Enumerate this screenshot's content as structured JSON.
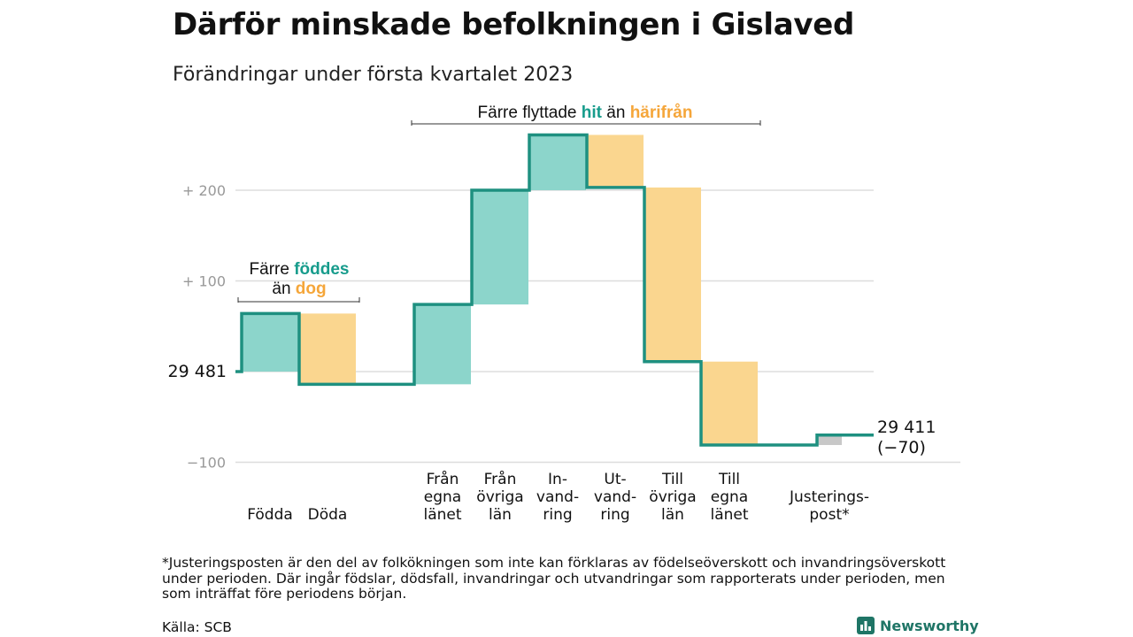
{
  "title": "Därför minskade befolkningen i Gislaved",
  "subtitle": "Förändringar under första kvartalet 2023",
  "colors": {
    "increase": "#8cd5cb",
    "decrease": "#fad68f",
    "adjustment": "#c8c8c8",
    "line": "#1e9080",
    "teal_text": "#179c8c",
    "orange_text": "#f5a63a"
  },
  "annotations": {
    "birth_death": {
      "line1_plain": "Färre ",
      "line1_accent": "föddes",
      "line2_plain": "än ",
      "line2_accent": "dog"
    },
    "migration": {
      "plain1": "Färre flyttade ",
      "accent1": "hit",
      "plain2": " än ",
      "accent2": "härifrån"
    }
  },
  "chart_data": {
    "type": "waterfall",
    "title": "Därför minskade befolkningen i Gislaved",
    "subtitle": "Förändringar under första kvartalet 2023",
    "start_value": 29481,
    "start_label": "29 481",
    "end_value": 29411,
    "end_label": "29 411",
    "end_change_label": "(−70)",
    "y_ticks": [
      {
        "value": 200,
        "label": "+ 200"
      },
      {
        "value": 100,
        "label": "+ 100"
      },
      {
        "value": -100,
        "label": "−100"
      }
    ],
    "ylim": [
      -100,
      260
    ],
    "grid": true,
    "steps": [
      {
        "label_lines": [
          "Födda"
        ],
        "change": 64,
        "kind": "increase"
      },
      {
        "label_lines": [
          "Döda"
        ],
        "change": -78,
        "kind": "decrease"
      },
      {
        "label_lines": [
          "Från",
          "egna",
          "länet"
        ],
        "change": 88,
        "kind": "increase"
      },
      {
        "label_lines": [
          "Från",
          "övriga",
          "län"
        ],
        "change": 126,
        "kind": "increase"
      },
      {
        "label_lines": [
          "In-",
          "vand-",
          "ring"
        ],
        "change": 61,
        "kind": "increase"
      },
      {
        "label_lines": [
          "Ut-",
          "vand-",
          "ring"
        ],
        "change": -58,
        "kind": "decrease"
      },
      {
        "label_lines": [
          "Till",
          "övriga",
          "län"
        ],
        "change": -192,
        "kind": "decrease"
      },
      {
        "label_lines": [
          "Till",
          "egna",
          "länet"
        ],
        "change": -92,
        "kind": "decrease"
      },
      {
        "label_lines": [
          "Justerings-",
          "post*"
        ],
        "change": 11,
        "kind": "adjustment"
      }
    ]
  },
  "footnote": "*Justeringsposten är den del av folkökningen som inte kan förklaras av födelseöverskott och invandringsöverskott under perioden. Där ingår födslar, dödsfall, invandringar och utvandringar som rapporterats under perioden, men som inträffat före periodens början.",
  "source": "Källa: SCB",
  "brand": {
    "name": "Newsworthy",
    "icon": "bar-chart-logo-icon"
  }
}
